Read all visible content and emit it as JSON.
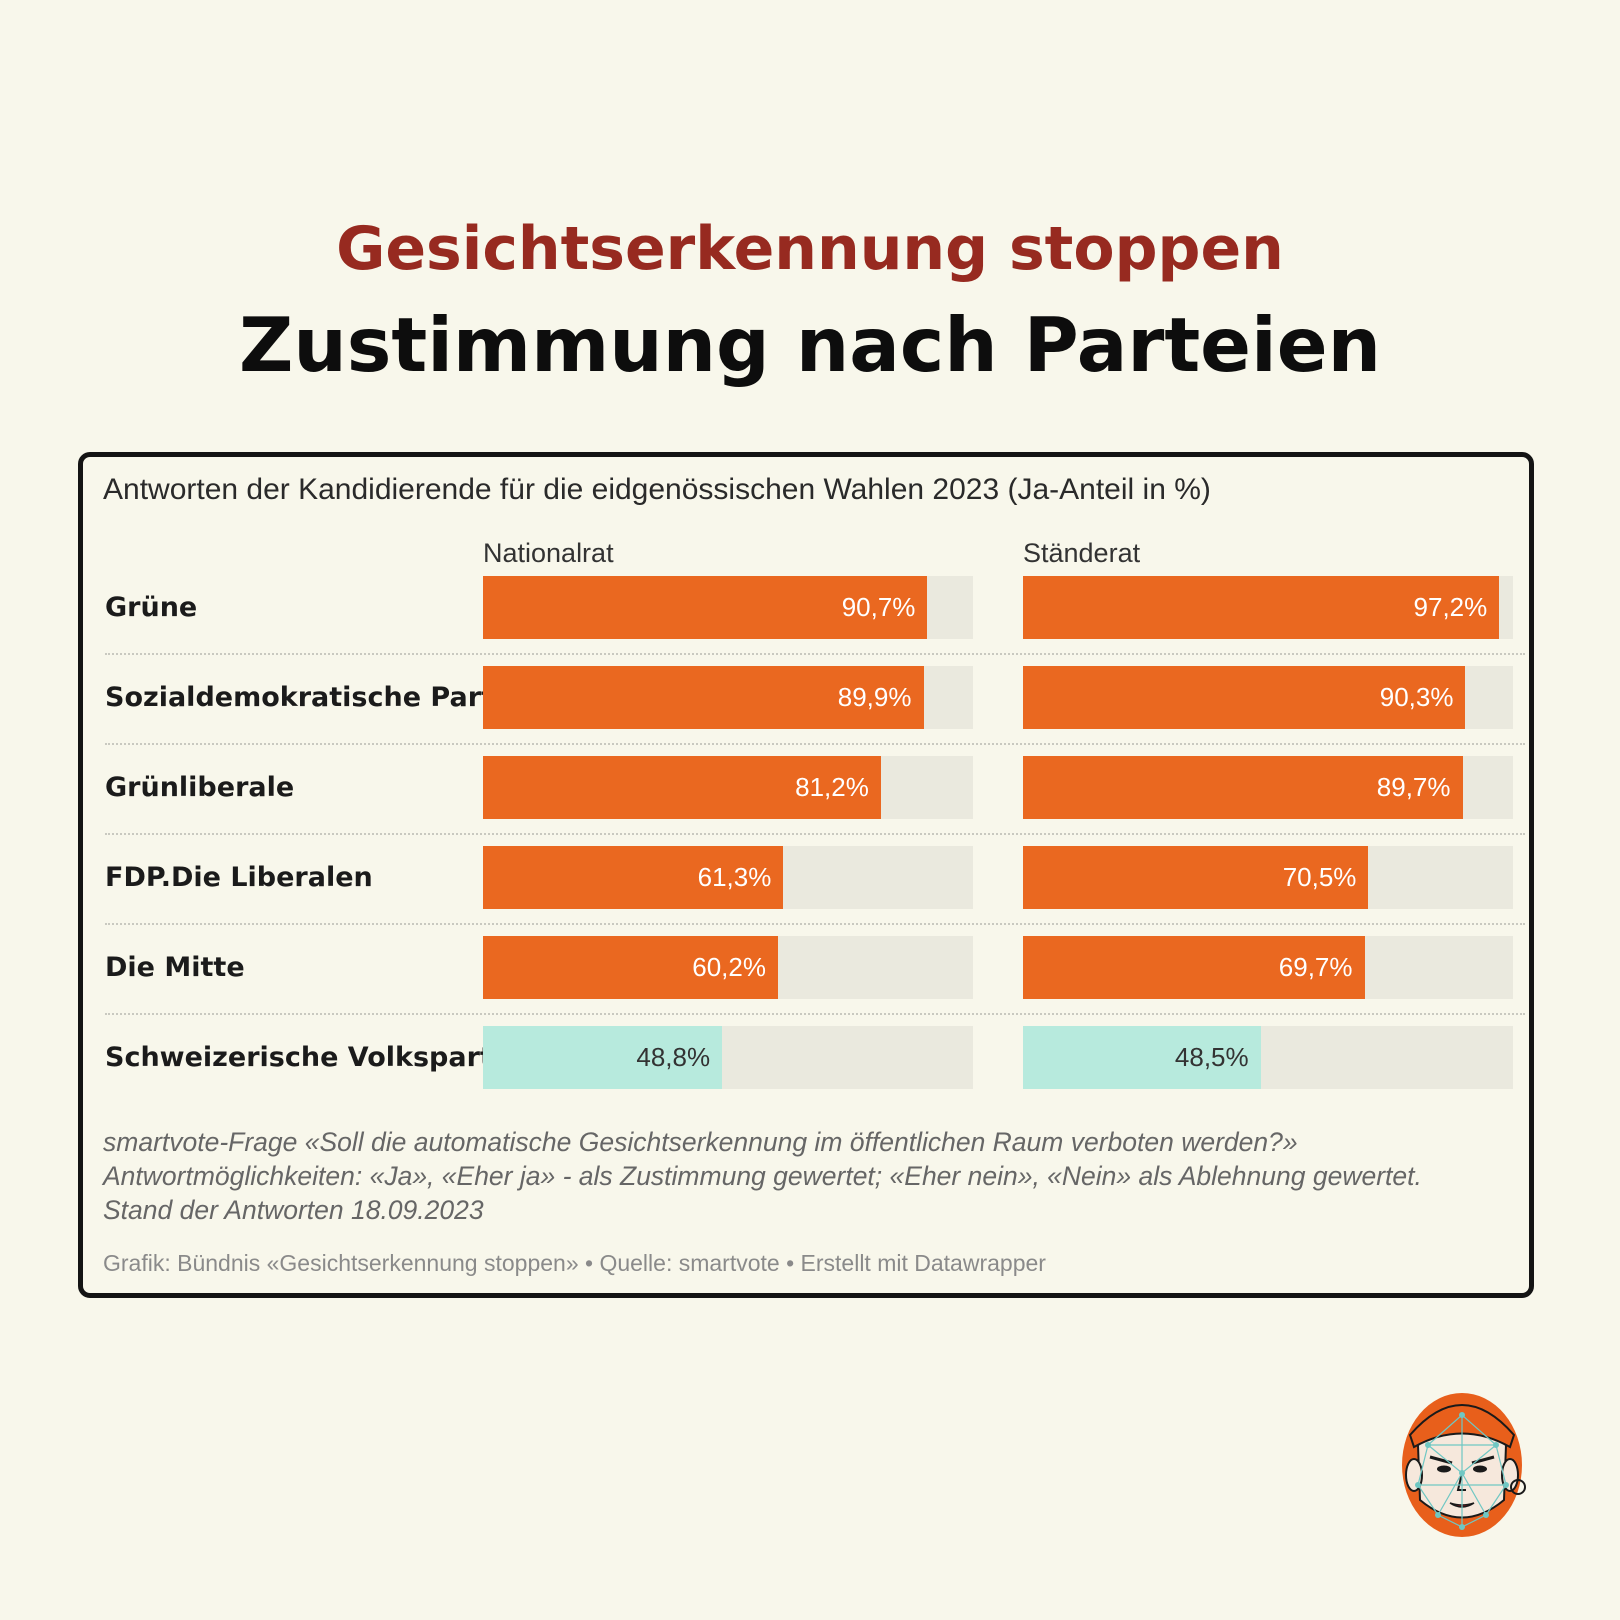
{
  "kicker": "Gesichtserkennung stoppen",
  "headline": "Zustimmung nach Parteien",
  "colors": {
    "background": "#f8f7eb",
    "kicker": "#972a20",
    "bar_high": "#ea6820",
    "bar_low": "#b7eadd",
    "track": "#eae9de",
    "label_on_high": "#ffffff",
    "label_on_low": "#333333"
  },
  "chart_data": {
    "type": "bar",
    "title": "Antworten der Kandidierende für die eidgenössischen Wahlen 2023 (Ja-Anteil in %)",
    "panels": [
      "Nationalrat",
      "Ständerat"
    ],
    "categories": [
      "Grüne",
      "Sozialdemokratische Partei",
      "Grünliberale",
      "FDP.Die Liberalen",
      "Die Mitte",
      "Schweizerische Volkspartei"
    ],
    "series": [
      {
        "name": "Nationalrat",
        "values": [
          90.7,
          89.9,
          81.2,
          61.3,
          60.2,
          48.8
        ],
        "labels": [
          "90,7%",
          "89,9%",
          "81,2%",
          "61,3%",
          "60,2%",
          "48,8%"
        ]
      },
      {
        "name": "Ständerat",
        "values": [
          97.2,
          90.3,
          89.7,
          70.5,
          69.7,
          48.5
        ],
        "labels": [
          "97,2%",
          "90,3%",
          "89,7%",
          "70,5%",
          "69,7%",
          "48,5%"
        ]
      }
    ],
    "xlim": [
      0,
      100
    ],
    "highlight_threshold": 50,
    "notes": [
      "smartvote-Frage «Soll die automatische Gesichtserkennung im öffentlichen Raum verboten werden?»",
      "Antwortmöglichkeiten: «Ja», «Eher ja» - als Zustimmung gewertet;  «Eher nein», «Nein» als Ablehnung gewertet.",
      "Stand der Antworten 18.09.2023"
    ],
    "credit": "Grafik: Bündnis «Gesichtserkennung stoppen» • Quelle: smartvote • Erstellt mit Datawrapper"
  },
  "mascot_icon": "face-recognition-mascot-icon"
}
